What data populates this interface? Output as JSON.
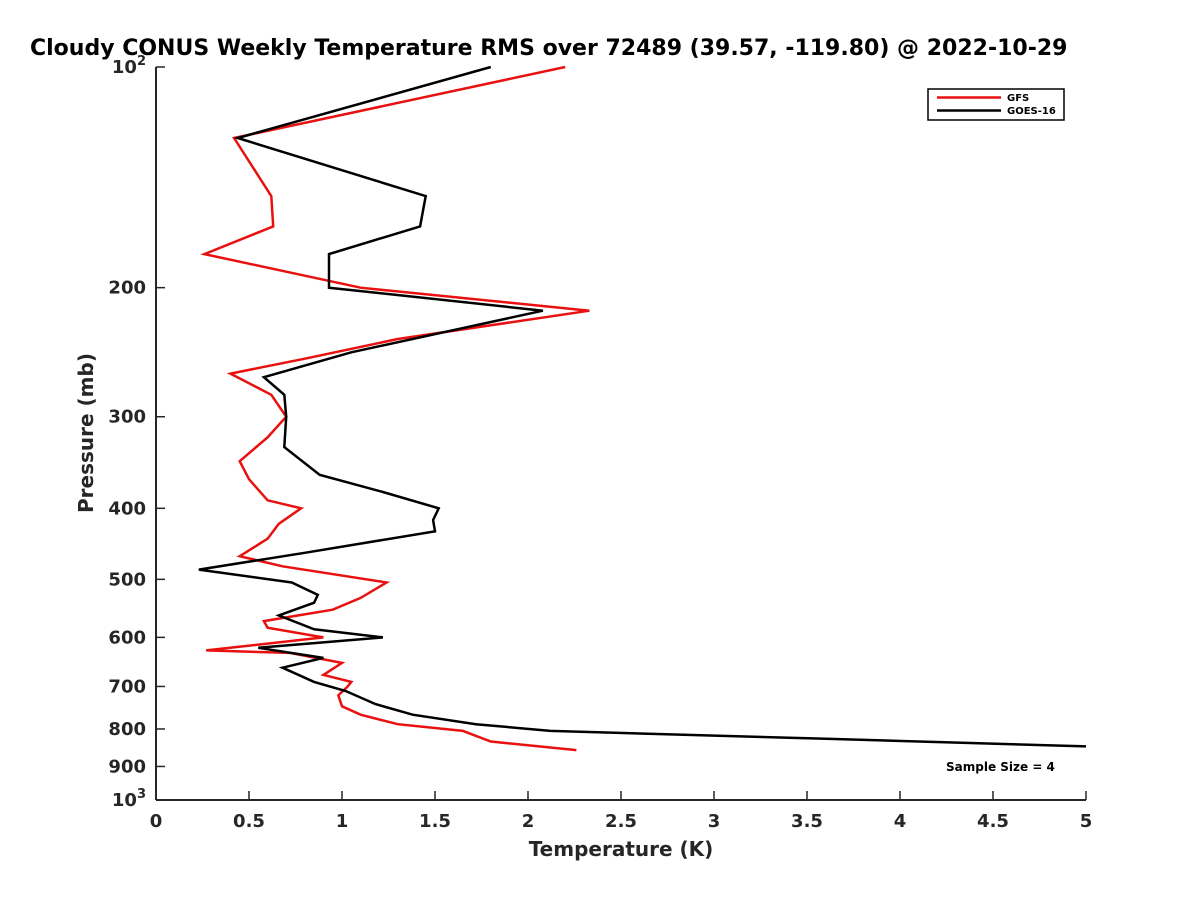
{
  "chart_data": {
    "type": "line",
    "title": "Cloudy CONUS Weekly Temperature RMS over 72489 (39.57, -119.80) @ 2022-10-29",
    "xlabel": "Temperature (K)",
    "ylabel": "Pressure (mb)",
    "xlim": [
      0,
      5
    ],
    "ylim": [
      100,
      1000
    ],
    "y_scale": "log",
    "y_reversed": true,
    "grid": false,
    "legend_position": "top-right",
    "x_ticks": [
      0,
      0.5,
      1,
      1.5,
      2,
      2.5,
      3,
      3.5,
      4,
      4.5,
      5
    ],
    "x_tick_labels": [
      "0",
      "0.5",
      "1",
      "1.5",
      "2",
      "2.5",
      "3",
      "3.5",
      "4",
      "4.5",
      "5"
    ],
    "y_ticks": [
      100,
      200,
      300,
      400,
      500,
      600,
      700,
      800,
      900,
      1000
    ],
    "y_tick_labels": [
      {
        "base": "10",
        "exp": "2"
      },
      {
        "base": "200",
        "exp": ""
      },
      {
        "base": "300",
        "exp": ""
      },
      {
        "base": "400",
        "exp": ""
      },
      {
        "base": "500",
        "exp": ""
      },
      {
        "base": "600",
        "exp": ""
      },
      {
        "base": "700",
        "exp": ""
      },
      {
        "base": "800",
        "exp": ""
      },
      {
        "base": "900",
        "exp": ""
      },
      {
        "base": "10",
        "exp": "3"
      }
    ],
    "annotation": "Sample Size = 4",
    "series": [
      {
        "name": "GFS",
        "color": "#e8110f",
        "points": [
          [
            2.2,
            100
          ],
          [
            0.42,
            125
          ],
          [
            0.62,
            150
          ],
          [
            0.63,
            165
          ],
          [
            0.26,
            180
          ],
          [
            1.1,
            200
          ],
          [
            2.33,
            215
          ],
          [
            1.3,
            235
          ],
          [
            0.8,
            250
          ],
          [
            0.4,
            262
          ],
          [
            0.62,
            280
          ],
          [
            0.7,
            300
          ],
          [
            0.6,
            320
          ],
          [
            0.45,
            345
          ],
          [
            0.5,
            365
          ],
          [
            0.6,
            390
          ],
          [
            0.78,
            400
          ],
          [
            0.66,
            420
          ],
          [
            0.6,
            440
          ],
          [
            0.45,
            465
          ],
          [
            0.68,
            480
          ],
          [
            1.24,
            505
          ],
          [
            1.1,
            530
          ],
          [
            0.95,
            550
          ],
          [
            0.58,
            570
          ],
          [
            0.6,
            582
          ],
          [
            0.9,
            600
          ],
          [
            0.27,
            625
          ],
          [
            0.72,
            630
          ],
          [
            1.0,
            650
          ],
          [
            0.9,
            675
          ],
          [
            1.05,
            690
          ],
          [
            1.03,
            700
          ],
          [
            0.98,
            720
          ],
          [
            1.0,
            745
          ],
          [
            1.1,
            765
          ],
          [
            1.3,
            788
          ],
          [
            1.65,
            805
          ],
          [
            1.8,
            832
          ],
          [
            2.26,
            855
          ]
        ]
      },
      {
        "name": "GOES-16",
        "color": "#000000",
        "points": [
          [
            1.8,
            100
          ],
          [
            0.44,
            125
          ],
          [
            1.45,
            150
          ],
          [
            1.42,
            165
          ],
          [
            0.93,
            180
          ],
          [
            0.93,
            200
          ],
          [
            2.08,
            215
          ],
          [
            1.05,
            245
          ],
          [
            0.58,
            265
          ],
          [
            0.69,
            280
          ],
          [
            0.7,
            300
          ],
          [
            0.69,
            330
          ],
          [
            0.88,
            360
          ],
          [
            1.22,
            380
          ],
          [
            1.52,
            400
          ],
          [
            1.49,
            415
          ],
          [
            1.5,
            430
          ],
          [
            0.8,
            460
          ],
          [
            0.23,
            485
          ],
          [
            0.73,
            505
          ],
          [
            0.87,
            525
          ],
          [
            0.85,
            538
          ],
          [
            0.66,
            560
          ],
          [
            0.85,
            585
          ],
          [
            1.22,
            600
          ],
          [
            0.55,
            620
          ],
          [
            0.9,
            640
          ],
          [
            0.68,
            660
          ],
          [
            0.85,
            690
          ],
          [
            1.02,
            710
          ],
          [
            1.18,
            740
          ],
          [
            1.38,
            765
          ],
          [
            1.72,
            788
          ],
          [
            2.12,
            805
          ],
          [
            3.6,
            825
          ],
          [
            5.0,
            845
          ]
        ]
      }
    ]
  }
}
